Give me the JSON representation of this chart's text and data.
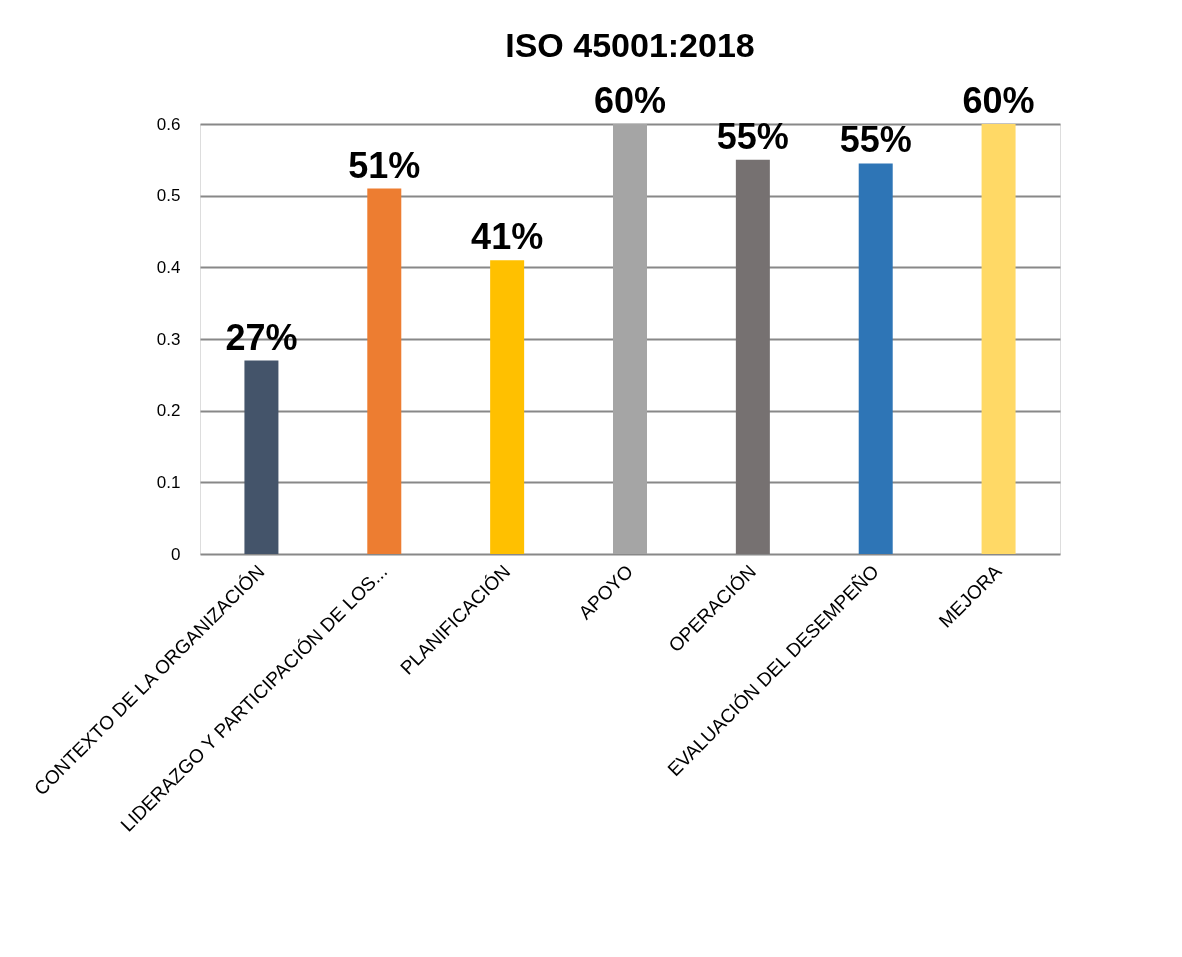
{
  "chart_data": {
    "type": "bar",
    "title": "ISO 45001:2018",
    "categories": [
      "CONTEXTO DE LA ORGANIZACIÓN",
      "LIDERAZGO Y PARTICIPACIÓN DE LOS...",
      "PLANIFICACIÓN",
      "APOYO",
      "OPERACIÓN",
      "EVALUACIÓN DEL DESEMPEÑO",
      "MEJORA"
    ],
    "values": [
      0.27,
      0.51,
      0.41,
      0.6,
      0.55,
      0.545,
      0.6
    ],
    "value_labels": [
      "27%",
      "51%",
      "41%",
      "60%",
      "55%",
      "55%",
      "60%"
    ],
    "colors": [
      "#44546a",
      "#ed7d31",
      "#ffc000",
      "#a5a5a5",
      "#767171",
      "#2e75b6",
      "#ffd966"
    ],
    "ylim": [
      0,
      0.6
    ],
    "yticks": [
      0,
      0.1,
      0.2,
      0.3,
      0.4,
      0.5,
      0.6
    ],
    "grid": "y",
    "legend": false
  }
}
